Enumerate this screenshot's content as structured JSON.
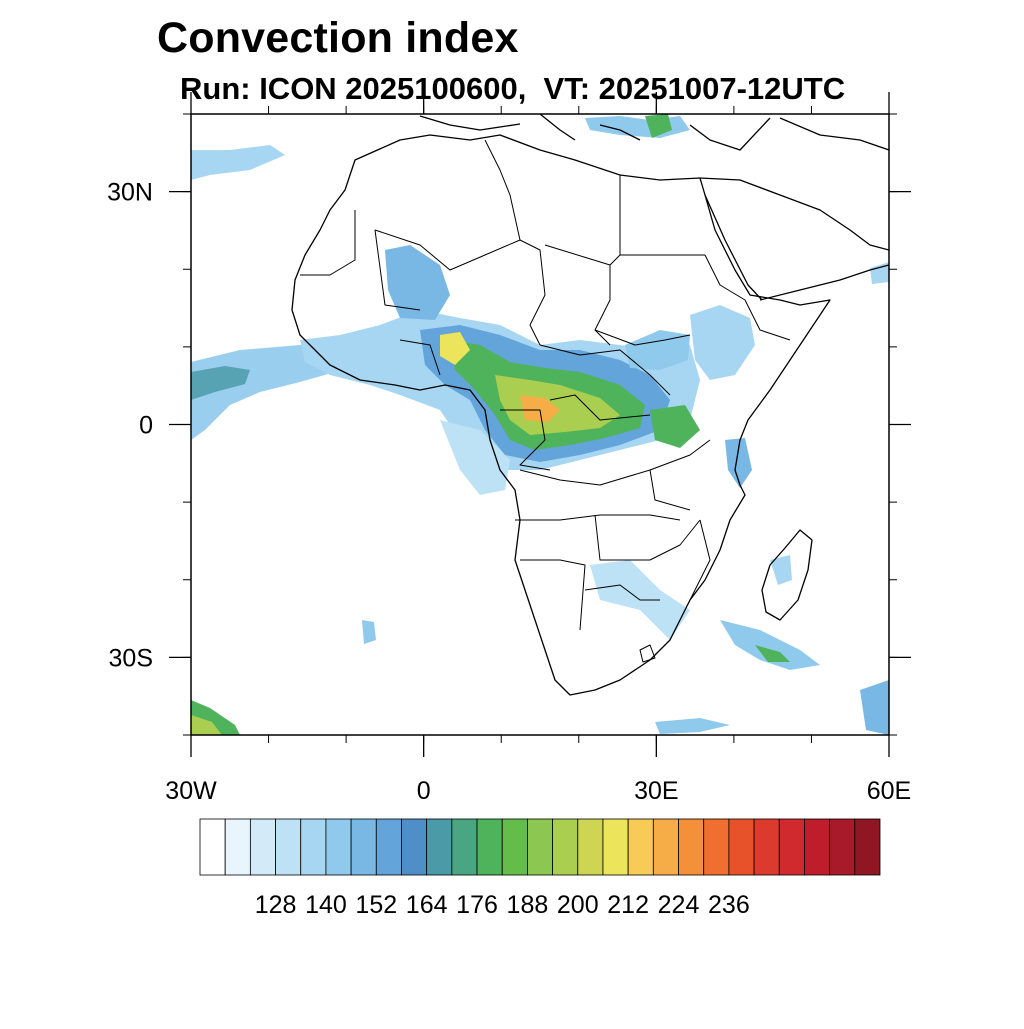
{
  "title": "Convection index",
  "subtitle": "Run: ICON 2025100600,  VT: 20251007-12UTC",
  "map": {
    "region": "Africa",
    "lon_range": [
      -30,
      60
    ],
    "lat_range": [
      -40,
      40
    ],
    "lat_ticks": [
      {
        "value": 30,
        "label": "30N"
      },
      {
        "value": 0,
        "label": "0"
      },
      {
        "value": -30,
        "label": "30S"
      }
    ],
    "lon_ticks": [
      {
        "value": -30,
        "label": "30W"
      },
      {
        "value": 0,
        "label": "0"
      },
      {
        "value": 30,
        "label": "30E"
      },
      {
        "value": 60,
        "label": "60E"
      }
    ]
  },
  "colorbar": {
    "labels": [
      "128",
      "140",
      "152",
      "164",
      "176",
      "188",
      "200",
      "212",
      "224",
      "236"
    ],
    "colors": [
      "#ffffff",
      "#e8f5fc",
      "#d3ebf8",
      "#bde1f5",
      "#a6d6f2",
      "#8fc9ec",
      "#79b7e4",
      "#63a4da",
      "#4f8fc8",
      "#4b9aa8",
      "#4aa582",
      "#4eb35a",
      "#64bd4a",
      "#8cc751",
      "#aacf50",
      "#cdd552",
      "#ece45a",
      "#f8cb57",
      "#f6ad47",
      "#f48f3a",
      "#ef6e30",
      "#e8522b",
      "#dc3a2d",
      "#d02a2e",
      "#bf1d2b",
      "#a8192a",
      "#8f1623"
    ]
  }
}
